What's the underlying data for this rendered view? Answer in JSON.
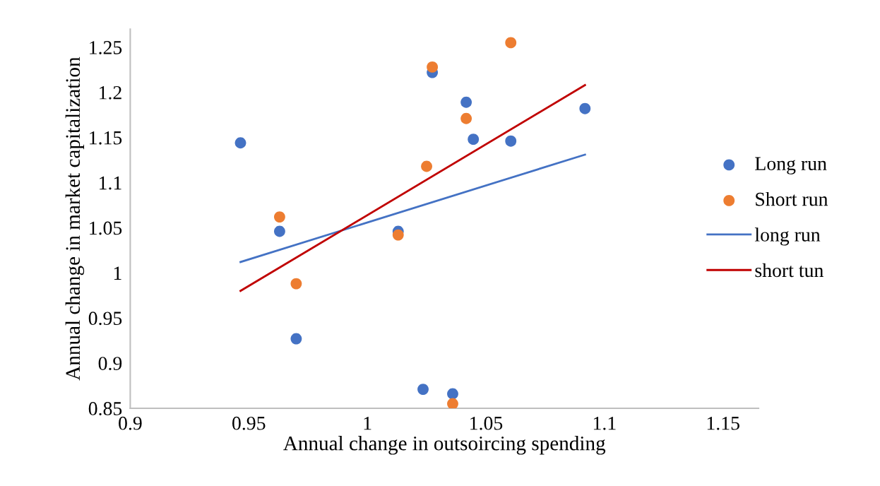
{
  "chart_data": {
    "type": "scatter",
    "xlabel": "Annual change in outsoircing spending",
    "ylabel": "Annual change in market capitalization",
    "xlim": [
      0.9,
      1.165
    ],
    "xticks": [
      0.9,
      0.95,
      1,
      1.05,
      1.1,
      1.15
    ],
    "ylim": [
      0.85,
      1.27
    ],
    "yticks": [
      0.85,
      0.9,
      0.95,
      1,
      1.05,
      1.1,
      1.15,
      1.2,
      1.25
    ],
    "grid": false,
    "legend": "right",
    "series": [
      {
        "name": "Long run",
        "marker": "circle",
        "color": "#4472c4",
        "x": [
          0.9465,
          0.963,
          0.97,
          1.013,
          1.0235,
          1.0274,
          1.036,
          1.0417,
          1.0447,
          1.0605,
          1.0918
        ],
        "values": [
          1.144,
          1.046,
          0.927,
          1.046,
          0.871,
          1.222,
          0.866,
          1.189,
          1.148,
          1.146,
          1.182
        ]
      },
      {
        "name": "Short run",
        "marker": "circle",
        "color": "#ed7d31",
        "x": [
          0.963,
          0.97,
          1.013,
          1.025,
          1.0274,
          1.036,
          1.0417,
          1.0605
        ],
        "values": [
          1.062,
          0.988,
          1.042,
          1.118,
          1.228,
          0.855,
          1.171,
          1.255
        ]
      },
      {
        "name": "long run",
        "type": "line",
        "color": "#4472c4",
        "x": [
          0.9465,
          1.0918
        ],
        "values": [
          1.012,
          1.131
        ]
      },
      {
        "name": "short tun",
        "type": "line",
        "color": "#c00000",
        "x": [
          0.9465,
          1.0918
        ],
        "values": [
          0.98,
          1.208
        ]
      }
    ]
  }
}
